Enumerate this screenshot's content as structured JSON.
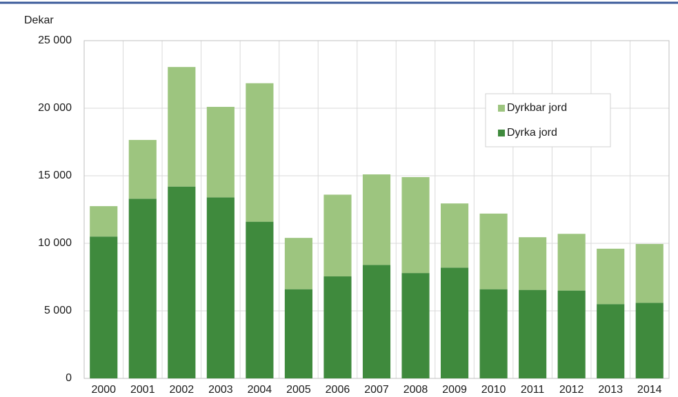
{
  "chart_data": {
    "type": "stacked_bar",
    "y_label": "Dekar",
    "categories": [
      "2000",
      "2001",
      "2002",
      "2003",
      "2004",
      "2005",
      "2006",
      "2007",
      "2008",
      "2009",
      "2010",
      "2011",
      "2012",
      "2013",
      "2014"
    ],
    "series": [
      {
        "name": "Dyrka jord",
        "color": "#3f8a3d",
        "values": [
          10500,
          13300,
          14200,
          13400,
          11600,
          6600,
          7550,
          8400,
          7800,
          8200,
          6600,
          6550,
          6500,
          5500,
          5600
        ]
      },
      {
        "name": "Dyrkbar jord",
        "color": "#9dc57f",
        "values": [
          2250,
          4350,
          8850,
          6700,
          10250,
          3800,
          6050,
          6700,
          7100,
          4750,
          5600,
          3900,
          4200,
          4100,
          4350
        ]
      }
    ],
    "ylim": [
      0,
      25000
    ],
    "yticks": [
      0,
      {
        "value": 5000,
        "label": "5 000"
      },
      {
        "value": 10000,
        "label": "10 000"
      },
      {
        "value": 15000,
        "label": "15 000"
      },
      {
        "value": 20000,
        "label": "20 000"
      },
      {
        "value": 25000,
        "label": "25 000"
      }
    ],
    "grid": true,
    "legend": "upper right"
  }
}
